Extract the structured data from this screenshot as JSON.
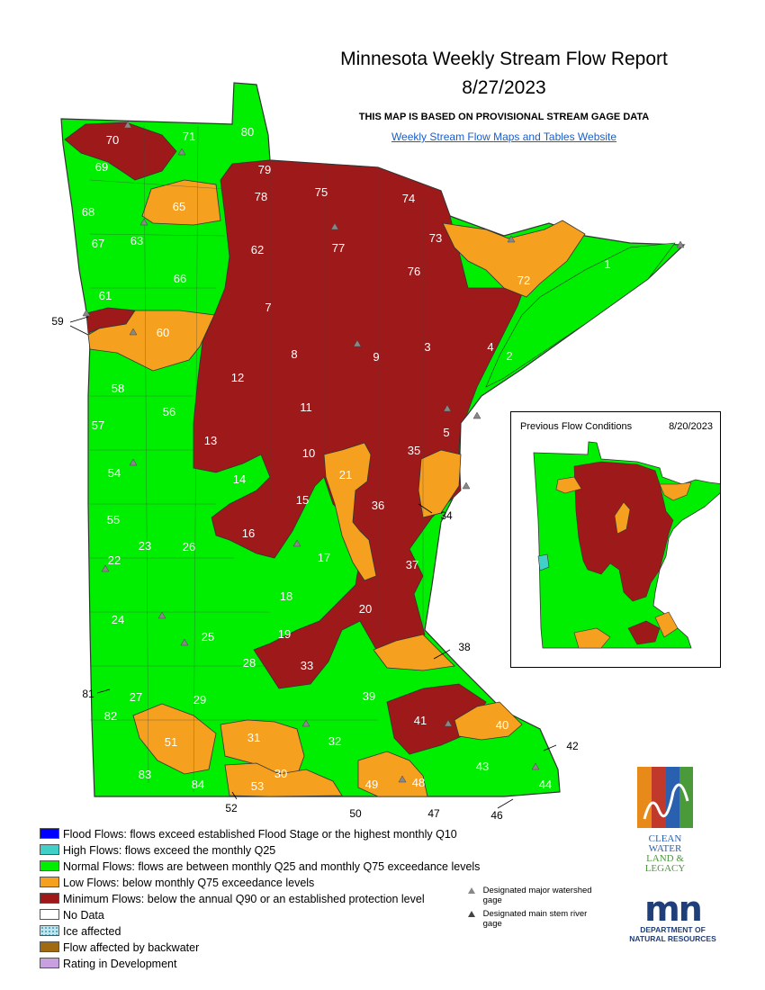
{
  "header": {
    "title": "Minnesota Weekly Stream Flow Report",
    "date": "8/27/2023",
    "note": "THIS MAP IS BASED ON PROVISIONAL STREAM GAGE DATA",
    "link": "Weekly Stream Flow Maps and Tables Website"
  },
  "watershed_labels": [
    "1",
    "2",
    "3",
    "4",
    "5",
    "7",
    "8",
    "9",
    "10",
    "11",
    "12",
    "13",
    "14",
    "15",
    "16",
    "17",
    "18",
    "19",
    "20",
    "21",
    "22",
    "23",
    "24",
    "25",
    "26",
    "27",
    "28",
    "29",
    "30",
    "31",
    "32",
    "33",
    "34",
    "35",
    "36",
    "37",
    "38",
    "39",
    "40",
    "41",
    "42",
    "43",
    "44",
    "46",
    "47",
    "48",
    "49",
    "50",
    "51",
    "52",
    "53",
    "54",
    "55",
    "56",
    "57",
    "58",
    "59",
    "60",
    "61",
    "62",
    "63",
    "65",
    "66",
    "67",
    "68",
    "69",
    "70",
    "71",
    "72",
    "73",
    "74",
    "75",
    "76",
    "77",
    "78",
    "79",
    "80",
    "81",
    "82",
    "83",
    "84"
  ],
  "inset": {
    "title": "Previous Flow Conditions",
    "date": "8/20/2023"
  },
  "legend": [
    {
      "label": "Flood Flows: flows exceed established Flood Stage or the highest monthly Q10",
      "color": "#0000ff"
    },
    {
      "label": "High Flows: flows exceed the monthly Q25",
      "color": "#40d0c8"
    },
    {
      "label": "Normal Flows: flows are between monthly Q25 and monthly Q75 exceedance levels",
      "color": "#00ee00"
    },
    {
      "label": "Low Flows: below monthly Q75 exceedance levels",
      "color": "#f5a01e"
    },
    {
      "label": "Minimum Flows: below the annual Q90 or an established protection level",
      "color": "#9e1a1a"
    },
    {
      "label": "No Data",
      "color": "#ffffff"
    },
    {
      "label": "Ice affected",
      "color": "#bfe6f0"
    },
    {
      "label": "Flow affected by backwater",
      "color": "#a06a10"
    },
    {
      "label": "Rating in Development",
      "color": "#c8a0e0"
    }
  ],
  "gage_key": {
    "major": "Designated major watershed gage",
    "main_stem": "Designated main stem river gage"
  },
  "logos": {
    "cwll": [
      "CLEAN",
      "WATER",
      "LAND &",
      "LEGACY"
    ],
    "dnr_mark": "mn",
    "dnr_text": [
      "DEPARTMENT OF",
      "NATURAL RESOURCES"
    ]
  }
}
